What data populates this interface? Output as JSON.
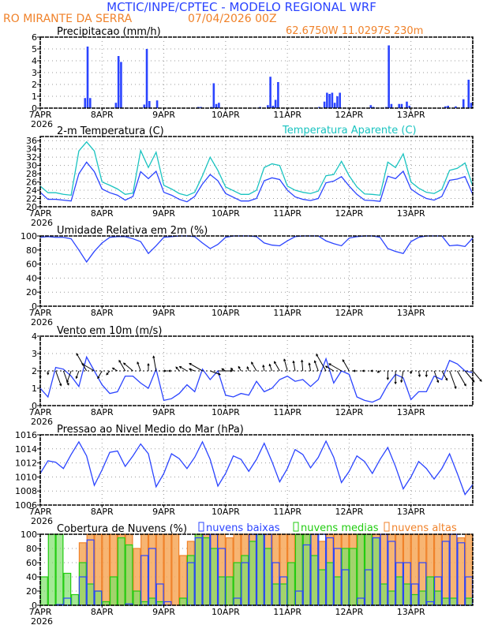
{
  "header": {
    "title": "MCTIC/INPE/CPTEC - MODELO REGIONAL WRF",
    "station": "RO MIRANTE DA SERRA",
    "run": "07/04/2026 00Z",
    "location": "62.6750W 11.0297S 230m"
  },
  "colors": {
    "title": "#2b44ff",
    "orange": "#f0822a",
    "blue": "#2b44ff",
    "cyan": "#19c3c0",
    "green": "#22cc11",
    "black": "#000000"
  },
  "x_axis": {
    "ticks": [
      "7APR",
      "8APR",
      "9APR",
      "10APR",
      "11APR",
      "12APR",
      "13APR"
    ],
    "year": "2026",
    "hours_total": 168,
    "step_hours": 3
  },
  "chart_data": [
    {
      "id": "precip",
      "type": "bar",
      "title": "Precipitacao (mm/h)",
      "ylim": [
        0,
        6
      ],
      "yticks": [
        "0",
        "1",
        "2",
        "3",
        "4",
        "5",
        "6"
      ],
      "series": [
        {
          "name": "precip",
          "unit": "mm/h",
          "hourly_nonzero": [
            [
              17,
              0.85
            ],
            [
              18,
              5.2
            ],
            [
              19,
              0.85
            ],
            [
              29,
              0.45
            ],
            [
              30,
              4.4
            ],
            [
              31,
              3.9
            ],
            [
              40,
              0.3
            ],
            [
              41,
              5.0
            ],
            [
              42,
              0.6
            ],
            [
              45,
              0.65
            ],
            [
              61,
              0.1
            ],
            [
              62,
              0.1
            ],
            [
              66,
              0.1
            ],
            [
              67,
              2.1
            ],
            [
              68,
              0.35
            ],
            [
              69,
              0.45
            ],
            [
              85,
              0.1
            ],
            [
              88,
              0.25
            ],
            [
              89,
              2.65
            ],
            [
              90,
              0.2
            ],
            [
              91,
              0.7
            ],
            [
              92,
              2.2
            ],
            [
              108,
              0.1
            ],
            [
              110,
              0.55
            ],
            [
              111,
              1.3
            ],
            [
              112,
              1.2
            ],
            [
              113,
              1.3
            ],
            [
              114,
              0.45
            ],
            [
              115,
              1.0
            ],
            [
              116,
              1.3
            ],
            [
              128,
              0.25
            ],
            [
              129,
              0.1
            ],
            [
              134,
              0.1
            ],
            [
              135,
              5.3
            ],
            [
              136,
              0.35
            ],
            [
              139,
              0.35
            ],
            [
              140,
              0.35
            ],
            [
              142,
              0.55
            ],
            [
              143,
              0.2
            ],
            [
              157,
              0.15
            ],
            [
              158,
              0.2
            ],
            [
              161,
              0.15
            ],
            [
              164,
              0.75
            ],
            [
              166,
              2.4
            ],
            [
              167,
              0.45
            ]
          ]
        }
      ]
    },
    {
      "id": "temp",
      "type": "line",
      "title": "2-m Temperatura (C)",
      "legend": "Temperatura Aparente (C)",
      "ylim": [
        20,
        37
      ],
      "yticks": [
        "20",
        "22",
        "24",
        "26",
        "28",
        "30",
        "32",
        "34",
        "36"
      ],
      "series": [
        {
          "name": "Temperatura 2m",
          "color": "blue",
          "values": [
            23.5,
            21.8,
            21.8,
            21.6,
            21.4,
            28,
            30.8,
            28.5,
            24.3,
            23.4,
            22.8,
            21.6,
            22.5,
            28.5,
            26.8,
            28.6,
            23.5,
            22.8,
            21.8,
            21.2,
            22.5,
            25.5,
            27.8,
            26.3,
            23.2,
            22.3,
            21.4,
            21.4,
            22,
            26.3,
            27,
            26.6,
            24,
            22.4,
            21.8,
            21.5,
            22,
            25.8,
            26.2,
            27.3,
            25,
            23,
            21.6,
            21.5,
            21.3,
            27.4,
            26.8,
            28.6,
            24.3,
            23,
            22,
            21.6,
            22.5,
            26.4,
            26.7,
            27.3,
            23
          ]
        },
        {
          "name": "Temperatura Aparente",
          "color": "cyan",
          "values": [
            25,
            23.4,
            23.4,
            23,
            22.8,
            33.5,
            35.7,
            33.5,
            26,
            25.2,
            24.3,
            23,
            23.3,
            33.6,
            29.5,
            33.2,
            25.2,
            24.3,
            23.2,
            22.7,
            23.5,
            27.5,
            32,
            28.8,
            24.8,
            23.9,
            23,
            23,
            24,
            29.5,
            30.4,
            30,
            25,
            24,
            23.5,
            23.2,
            23.8,
            27.5,
            27.8,
            31,
            27.5,
            24.8,
            23.1,
            23,
            22.8,
            30.8,
            29.5,
            32.8,
            26,
            24.5,
            23.5,
            23.2,
            24.2,
            28.8,
            29.3,
            30.6,
            25
          ]
        }
      ]
    },
    {
      "id": "rh",
      "type": "line",
      "title": "Umidade Relativa em 2m (%)",
      "ylim": [
        0,
        100
      ],
      "yticks": [
        "0",
        "20",
        "40",
        "60",
        "80",
        "100"
      ],
      "series": [
        {
          "name": "UR",
          "color": "blue",
          "values": [
            98,
            99,
            98,
            98,
            96,
            80,
            63,
            78,
            90,
            98,
            99,
            99,
            96,
            92,
            75,
            86,
            98,
            99,
            100,
            100,
            99,
            90,
            82,
            88,
            98,
            100,
            100,
            100,
            99,
            90,
            87,
            86,
            93,
            99,
            100,
            100,
            100,
            93,
            89,
            86,
            97,
            99,
            100,
            100,
            98,
            82,
            78,
            75,
            92,
            98,
            100,
            100,
            100,
            86,
            87,
            85,
            97
          ]
        }
      ]
    },
    {
      "id": "wind",
      "type": "line",
      "title": "Vento em 10m (m/s)",
      "ylim": [
        0,
        4
      ],
      "yticks": [
        "0",
        "1",
        "2",
        "3",
        "4"
      ],
      "series": [
        {
          "name": "velocidade",
          "color": "blue",
          "values": [
            1.0,
            0.5,
            2.2,
            2.1,
            1.7,
            1.1,
            2.8,
            2.0,
            1.2,
            0.7,
            0.8,
            1.7,
            1.7,
            1.3,
            1.0,
            2.1,
            0.3,
            0.4,
            0.7,
            1.2,
            0.8,
            2.1,
            1.5,
            2.0,
            0.6,
            0.5,
            0.7,
            0.6,
            1.4,
            0.8,
            1.0,
            1.5,
            1.7,
            1.4,
            1.5,
            1.1,
            1.5,
            2.7,
            1.3,
            2.0,
            1.8,
            0.5,
            0.3,
            0.2,
            0.4,
            1.2,
            1.8,
            1.6,
            0.35,
            0.8,
            0.8,
            1.7,
            1.5,
            2.6,
            2.4,
            2.0,
            1.9
          ]
        },
        {
          "name": "direcao_seta_graus",
          "color": "black",
          "values": [
            180,
            180,
            160,
            160,
            200,
            200,
            330,
            300,
            210,
            220,
            300,
            330,
            310,
            340,
            0,
            350,
            90,
            270,
            320,
            300,
            290,
            300,
            110,
            90,
            300,
            320,
            330,
            340,
            330,
            350,
            340,
            330,
            345,
            350,
            355,
            350,
            340,
            330,
            300,
            300,
            330,
            270,
            270,
            270,
            240,
            180,
            180,
            190,
            180,
            170,
            180,
            160,
            150,
            160,
            150,
            140,
            140
          ]
        }
      ]
    },
    {
      "id": "pres",
      "type": "line",
      "title": "Pressao ao Nivel Medio do Mar (hPa)",
      "ylim": [
        1006,
        1016
      ],
      "yticks": [
        "1006",
        "1008",
        "1010",
        "1012",
        "1014",
        "1016"
      ],
      "series": [
        {
          "name": "PNMM",
          "color": "blue",
          "values": [
            1010.5,
            1012.3,
            1012.1,
            1011.2,
            1013.2,
            1015,
            1013,
            1008.8,
            1011,
            1013.5,
            1013.7,
            1011.5,
            1013,
            1014.7,
            1013.3,
            1008.6,
            1010.5,
            1013.3,
            1012.6,
            1011.2,
            1012.8,
            1015,
            1012.5,
            1008.7,
            1010.5,
            1013,
            1012.5,
            1010.8,
            1012.5,
            1014.8,
            1012.2,
            1009.3,
            1011.2,
            1013.9,
            1013.2,
            1011.3,
            1012.8,
            1015.1,
            1012.8,
            1009.2,
            1010.8,
            1013,
            1012.2,
            1010.5,
            1012.5,
            1014.2,
            1011.5,
            1008.3,
            1010,
            1012.2,
            1011.2,
            1009.7,
            1011.2,
            1013.3,
            1010.5,
            1007.5,
            1008.9
          ]
        }
      ]
    },
    {
      "id": "cloud",
      "type": "bar",
      "title": "Cobertura de Nuvens (%)",
      "ylim": [
        0,
        100
      ],
      "yticks": [
        "0",
        "20",
        "40",
        "60",
        "80",
        "100"
      ],
      "series": [
        {
          "name": "nuvens altas",
          "color": "orange",
          "values": [
            0,
            0,
            0,
            0,
            0,
            88,
            100,
            100,
            100,
            100,
            100,
            100,
            80,
            100,
            100,
            100,
            100,
            100,
            70,
            90,
            100,
            100,
            100,
            100,
            95,
            100,
            100,
            100,
            100,
            100,
            100,
            100,
            100,
            100,
            100,
            100,
            90,
            100,
            100,
            100,
            100,
            100,
            100,
            100,
            100,
            100,
            100,
            100,
            100,
            100,
            100,
            100,
            100,
            100,
            95,
            100
          ]
        },
        {
          "name": "nuvens medias",
          "color": "green",
          "values": [
            40,
            100,
            100,
            45,
            15,
            60,
            30,
            20,
            5,
            40,
            95,
            85,
            20,
            5,
            10,
            5,
            0,
            0,
            10,
            70,
            100,
            95,
            80,
            40,
            40,
            60,
            70,
            90,
            100,
            80,
            30,
            30,
            60,
            100,
            100,
            70,
            50,
            60,
            40,
            80,
            80,
            100,
            100,
            95,
            30,
            20,
            40,
            30,
            15,
            20,
            40,
            20,
            10,
            10,
            0,
            10
          ]
        },
        {
          "name": "nuvens baixas",
          "color": "blue",
          "values": [
            0,
            0,
            1,
            10,
            0,
            40,
            92,
            20,
            0,
            0,
            0,
            2,
            0,
            70,
            80,
            30,
            5,
            0,
            0,
            60,
            95,
            100,
            100,
            80,
            0,
            10,
            60,
            100,
            100,
            100,
            60,
            40,
            0,
            20,
            85,
            100,
            100,
            95,
            80,
            50,
            0,
            10,
            50,
            95,
            100,
            90,
            60,
            60,
            30,
            60,
            5,
            40,
            90,
            100,
            88,
            40
          ]
        }
      ]
    }
  ]
}
